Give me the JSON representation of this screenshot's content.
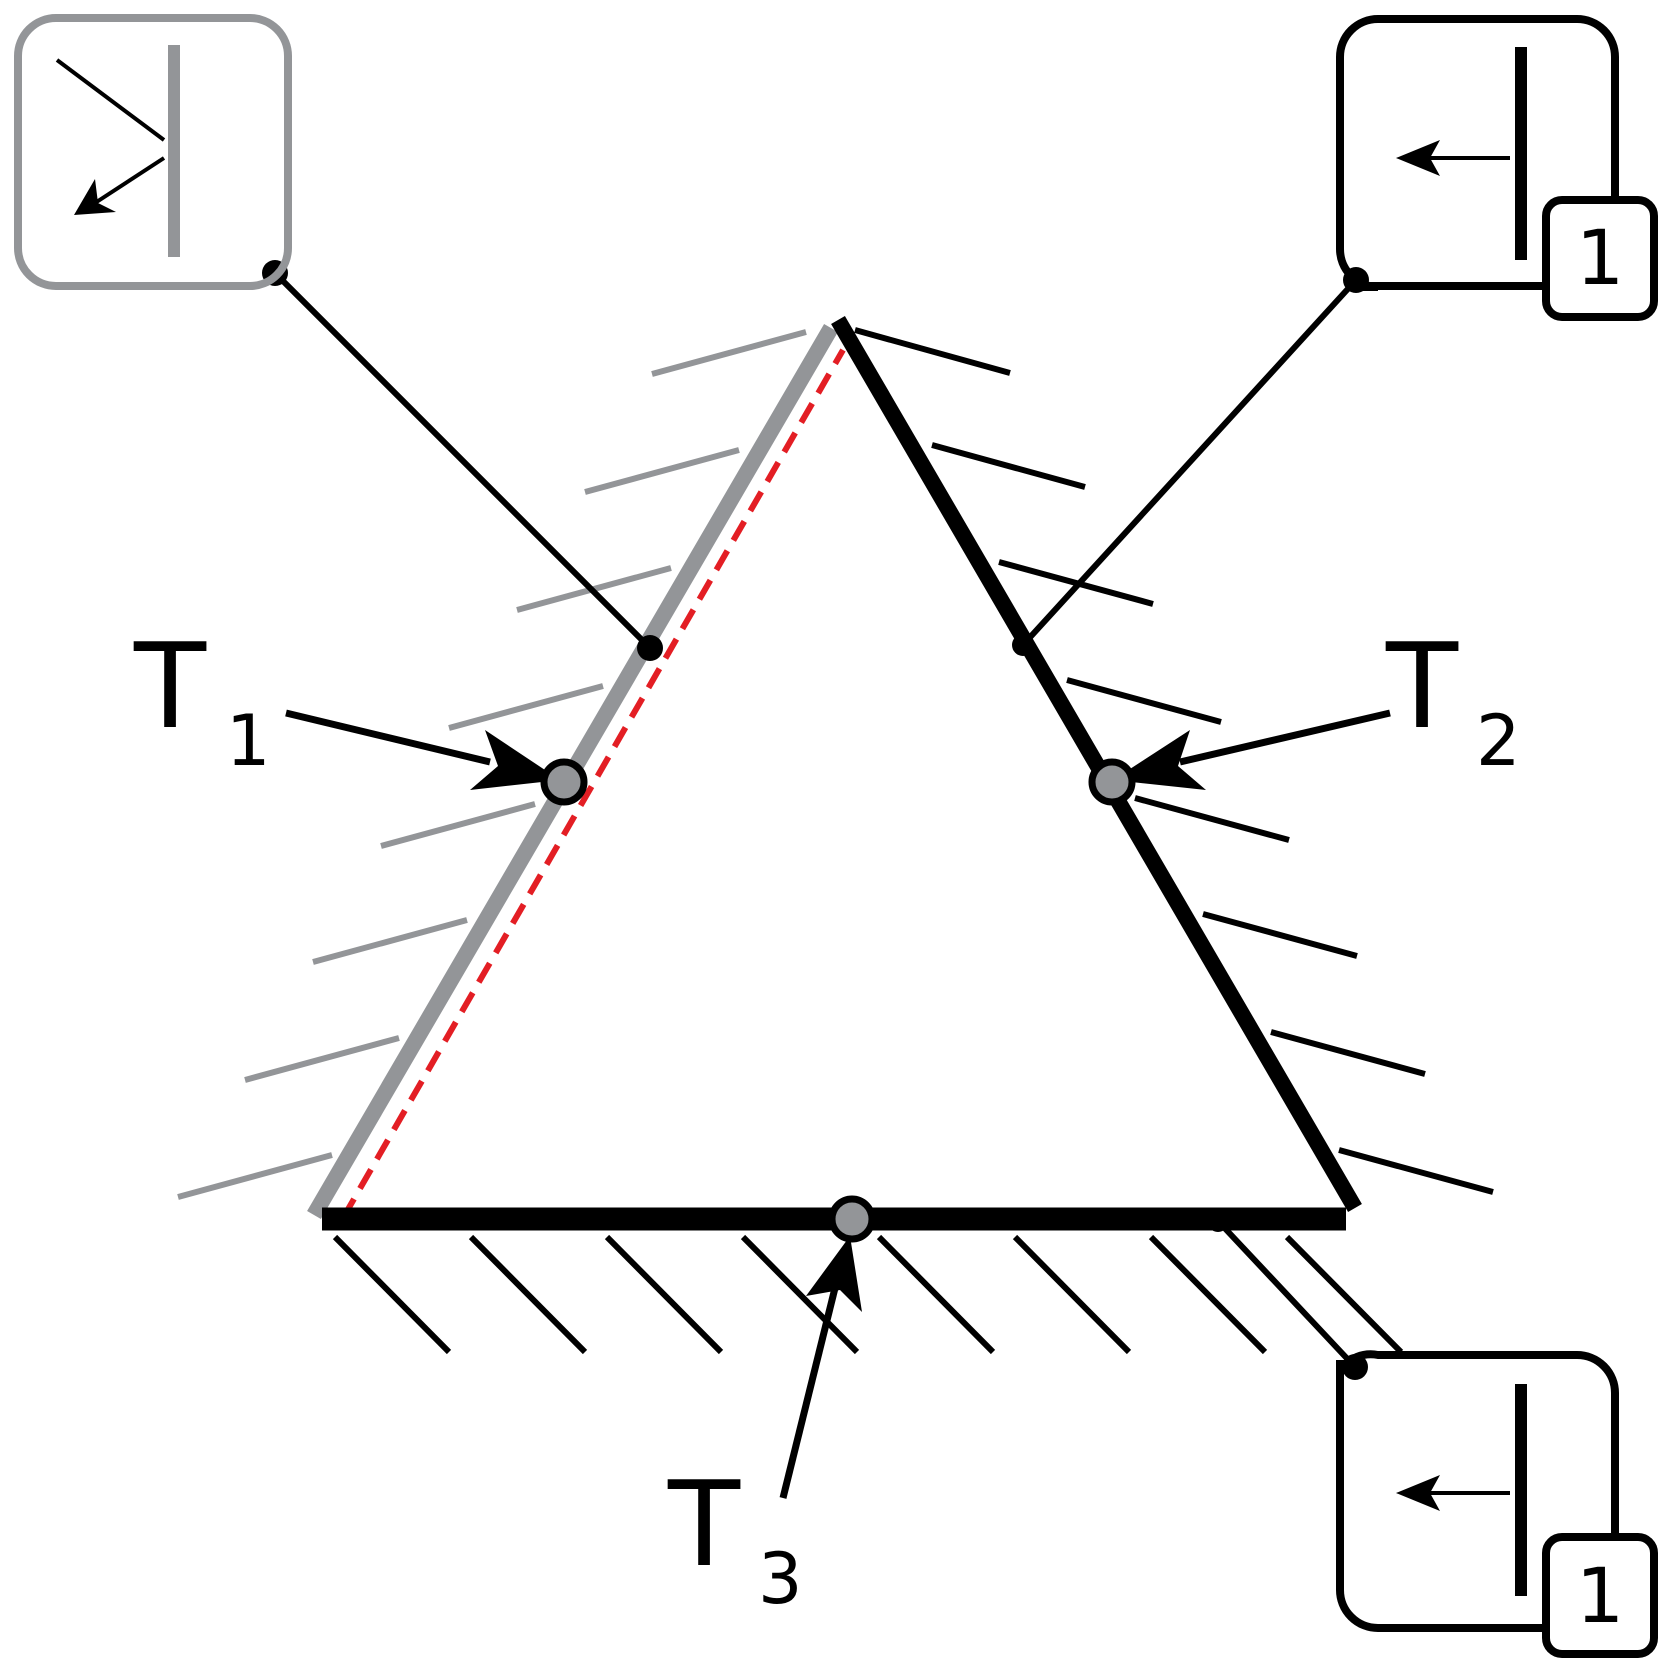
{
  "labels": {
    "t1_main": "T",
    "t1_sub": "1",
    "t2_main": "T",
    "t2_sub": "2",
    "t3_main": "T",
    "t3_sub": "3"
  },
  "boxes": {
    "top_right_badge": "1",
    "bottom_right_badge": "1"
  },
  "colors": {
    "ink": "#000000",
    "inactive_gray": "#939598",
    "contact_marker_fill": "#939598",
    "dashed_edge": "#e31e24",
    "background": "#ffffff"
  },
  "icons": {
    "top_left_box": "reflect-off-wall-icon",
    "top_right_box": "push-into-wall-icon",
    "bottom_right_box": "push-into-wall-icon"
  }
}
